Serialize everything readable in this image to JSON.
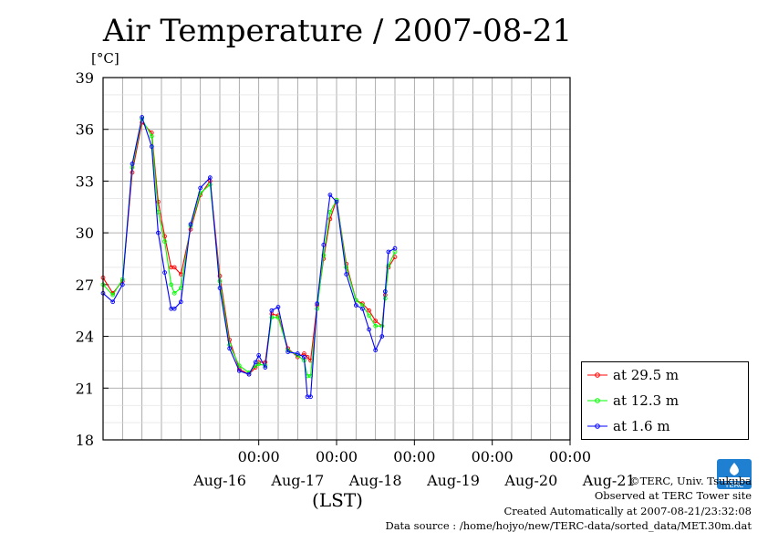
{
  "header": {
    "title": "Air Temperature / 2007-08-21",
    "unit": "[°C]"
  },
  "legend": [
    {
      "label": "at 29.5 m",
      "color": "#ff0000"
    },
    {
      "label": "at 12.3 m",
      "color": "#00ff00"
    },
    {
      "label": "at 1.6 m",
      "color": "#0000ff"
    }
  ],
  "xaxis": {
    "title": "(LST)"
  },
  "footer": {
    "copyright": "©TERC, Univ. Tsukuba",
    "observed": "Observed at TERC Tower site",
    "created": "Created Automatically at 2007-08-21/23:32:08",
    "source": "Data source : /home/hojyo/new/TERC-data/sorted_data/MET.30m.dat"
  },
  "logo": {
    "text": "TERC",
    "color": "#1f7fd0"
  },
  "chart_data": {
    "type": "line",
    "title": "Air Temperature / 2007-08-21",
    "ylabel": "[°C]",
    "xlabel": "(LST)",
    "ylim": [
      18,
      39
    ],
    "y_ticks": [
      "18",
      "21",
      "24",
      "27",
      "30",
      "33",
      "36",
      "39"
    ],
    "x_tick_labels": [
      "00:00",
      "00:00",
      "00:00",
      "00:00",
      "00:00"
    ],
    "day_labels": [
      "Aug-16",
      "Aug-17",
      "Aug-18",
      "Aug-19",
      "Aug-20",
      "Aug-21"
    ],
    "xlim_hours_from_aug15_00": [
      0,
      144
    ],
    "grid": true,
    "legend_position": "bottom-right, outside plot",
    "series": [
      {
        "name": "at 29.5 m",
        "color": "#ff0000",
        "x": [
          0,
          3,
          6,
          9,
          12,
          15,
          17,
          19,
          21,
          22,
          24,
          27,
          30,
          33,
          36,
          39,
          42,
          45,
          47,
          48,
          50,
          52,
          54,
          57,
          60,
          62,
          63,
          64,
          66,
          68,
          70,
          72,
          75,
          78,
          80,
          82,
          84,
          86,
          87,
          88,
          90,
          92,
          94,
          96,
          99,
          102,
          103,
          104,
          106,
          108,
          110,
          112,
          114,
          116,
          117,
          118,
          120,
          122,
          123,
          124,
          126,
          128,
          130,
          131,
          132
        ],
        "y": [
          27.4,
          26.5,
          27.2,
          33.5,
          36.4,
          35.8,
          31.8,
          29.8,
          28,
          28,
          27.6,
          30.2,
          32.2,
          33,
          27.5,
          23.8,
          22.1,
          21.8,
          22.2,
          22.5,
          22.5,
          25.3,
          25.2,
          23.3,
          22.8,
          23,
          22.8,
          22.6,
          25.8,
          28.5,
          30.8,
          31.9,
          28.2,
          26.1,
          25.9,
          25.5,
          24.9,
          24.6,
          26.4,
          28,
          28.6,
          null,
          null,
          null,
          null,
          null,
          null,
          null,
          null,
          null,
          null,
          null,
          null,
          null,
          null,
          null,
          null,
          null,
          null,
          null,
          null,
          null,
          null,
          null,
          null
        ]
      },
      {
        "name": "at 12.3 m",
        "color": "#00ff00",
        "x": [
          0,
          3,
          6,
          9,
          12,
          15,
          17,
          19,
          21,
          22,
          24,
          27,
          30,
          33,
          36,
          39,
          42,
          45,
          47,
          48,
          50,
          52,
          54,
          57,
          60,
          62,
          63,
          64,
          66,
          68,
          70,
          72,
          75,
          78,
          80,
          82,
          84,
          86,
          87,
          88,
          90
        ],
        "y": [
          27.0,
          26.4,
          27.3,
          33.8,
          36.6,
          35.6,
          31.2,
          29.5,
          27,
          26.5,
          26.8,
          30.4,
          32.3,
          32.8,
          27.2,
          23.5,
          22.3,
          21.9,
          22.3,
          22.4,
          22.3,
          25.1,
          25.1,
          23.2,
          22.9,
          22.6,
          21.7,
          21.7,
          25.6,
          28.7,
          31.2,
          31.9,
          28.0,
          26.1,
          25.8,
          25.2,
          24.6,
          24.6,
          26.2,
          28.1,
          28.9
        ]
      },
      {
        "name": "at 1.6 m",
        "color": "#0000ff",
        "x": [
          0,
          3,
          6,
          9,
          12,
          15,
          17,
          19,
          21,
          22,
          24,
          27,
          30,
          33,
          36,
          39,
          42,
          45,
          47,
          48,
          50,
          52,
          54,
          57,
          60,
          62,
          63,
          64,
          66,
          68,
          70,
          72,
          75,
          78,
          80,
          82,
          84,
          86,
          87,
          88,
          90
        ],
        "y": [
          26.5,
          26.0,
          27.0,
          34.0,
          36.7,
          35.0,
          30.0,
          27.7,
          25.6,
          25.6,
          26,
          30.5,
          32.6,
          33.2,
          26.8,
          23.3,
          22.0,
          21.8,
          22.5,
          22.9,
          22.2,
          25.5,
          25.7,
          23.1,
          23.0,
          22.8,
          20.5,
          20.5,
          25.9,
          29.3,
          32.2,
          31.8,
          27.6,
          25.8,
          25.6,
          24.4,
          23.2,
          24.0,
          26.6,
          28.9,
          29.1
        ]
      }
    ]
  }
}
